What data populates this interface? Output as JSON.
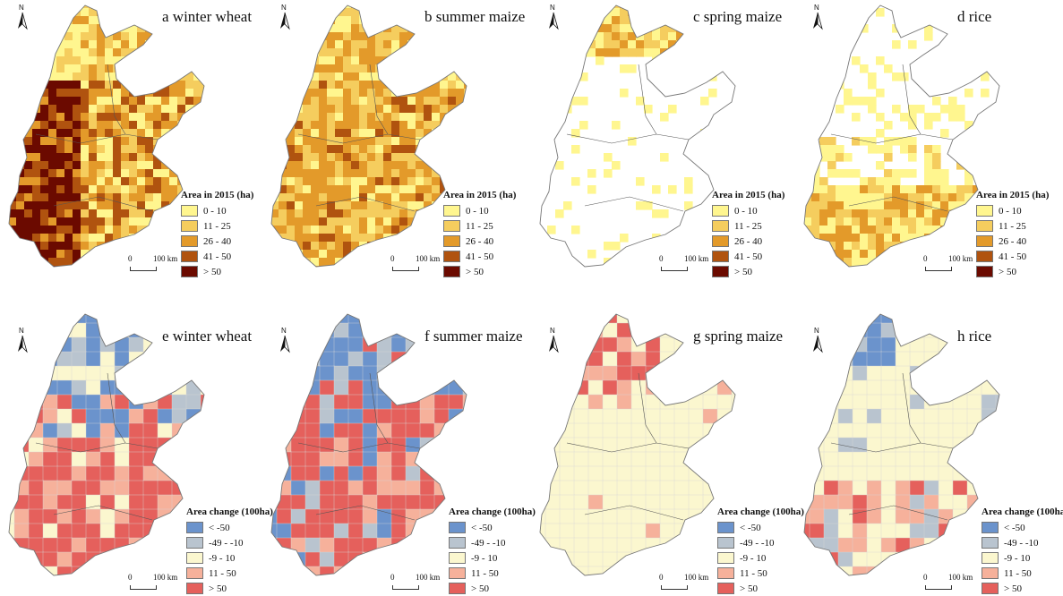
{
  "figure": {
    "panels": [
      {
        "id": "a",
        "title": "a winter wheat",
        "variable": "area_2015",
        "fill_pattern": "dense-dark",
        "colors": [
          "#fff68f",
          "#f5cd5e",
          "#e39a2a",
          "#b0530f",
          "#6b0a00"
        ]
      },
      {
        "id": "b",
        "title": "b summer maize",
        "variable": "area_2015",
        "fill_pattern": "dense-mid",
        "colors": [
          "#fff68f",
          "#f5cd5e",
          "#e39a2a",
          "#b0530f",
          "#6b0a00"
        ]
      },
      {
        "id": "c",
        "title": "c spring maize",
        "variable": "area_2015",
        "fill_pattern": "sparse-north",
        "colors": [
          "#fff68f",
          "#f5cd5e",
          "#e39a2a",
          "#b0530f",
          "#6b0a00"
        ]
      },
      {
        "id": "d",
        "title": "d rice",
        "variable": "area_2015",
        "fill_pattern": "sparse-south",
        "colors": [
          "#fff68f",
          "#f5cd5e",
          "#e39a2a",
          "#b0530f",
          "#6b0a00"
        ]
      },
      {
        "id": "e",
        "title": "e winter wheat",
        "variable": "area_change",
        "fill_pattern": "change-mixed",
        "colors": [
          "#6b93cc",
          "#b9c4cf",
          "#fbf7cf",
          "#f6b19b",
          "#e5605c"
        ]
      },
      {
        "id": "f",
        "title": "f summer maize",
        "variable": "area_change",
        "fill_pattern": "change-red",
        "colors": [
          "#6b93cc",
          "#b9c4cf",
          "#fbf7cf",
          "#f6b19b",
          "#e5605c"
        ]
      },
      {
        "id": "g",
        "title": "g spring maize",
        "variable": "area_change",
        "fill_pattern": "change-pale",
        "colors": [
          "#6b93cc",
          "#b9c4cf",
          "#fbf7cf",
          "#f6b19b",
          "#e5605c"
        ]
      },
      {
        "id": "h",
        "title": "h rice",
        "variable": "area_change",
        "fill_pattern": "change-pale-south",
        "colors": [
          "#6b93cc",
          "#b9c4cf",
          "#fbf7cf",
          "#f6b19b",
          "#e5605c"
        ]
      }
    ],
    "legend_area": {
      "title": "Area in 2015 (ha)",
      "items": [
        {
          "label": "0 - 10",
          "color": "#fff68f"
        },
        {
          "label": "11 - 25",
          "color": "#f5cd5e"
        },
        {
          "label": "26 - 40",
          "color": "#e39a2a"
        },
        {
          "label": "41 - 50",
          "color": "#b0530f"
        },
        {
          "label": "> 50",
          "color": "#6b0a00"
        }
      ]
    },
    "legend_change": {
      "title": "Area change (100ha)",
      "items": [
        {
          "label": "< -50",
          "color": "#6b93cc"
        },
        {
          "label": "-49 - -10",
          "color": "#b9c4cf"
        },
        {
          "label": "-9 - 10",
          "color": "#fbf7cf"
        },
        {
          "label": "11 - 50",
          "color": "#f6b19b"
        },
        {
          "label": "> 50",
          "color": "#e5605c"
        }
      ]
    },
    "scale_bar": {
      "zero": "0",
      "distance": "100 km"
    },
    "north_arrow": {
      "label": "N",
      "icon": "north-arrow-icon"
    }
  }
}
